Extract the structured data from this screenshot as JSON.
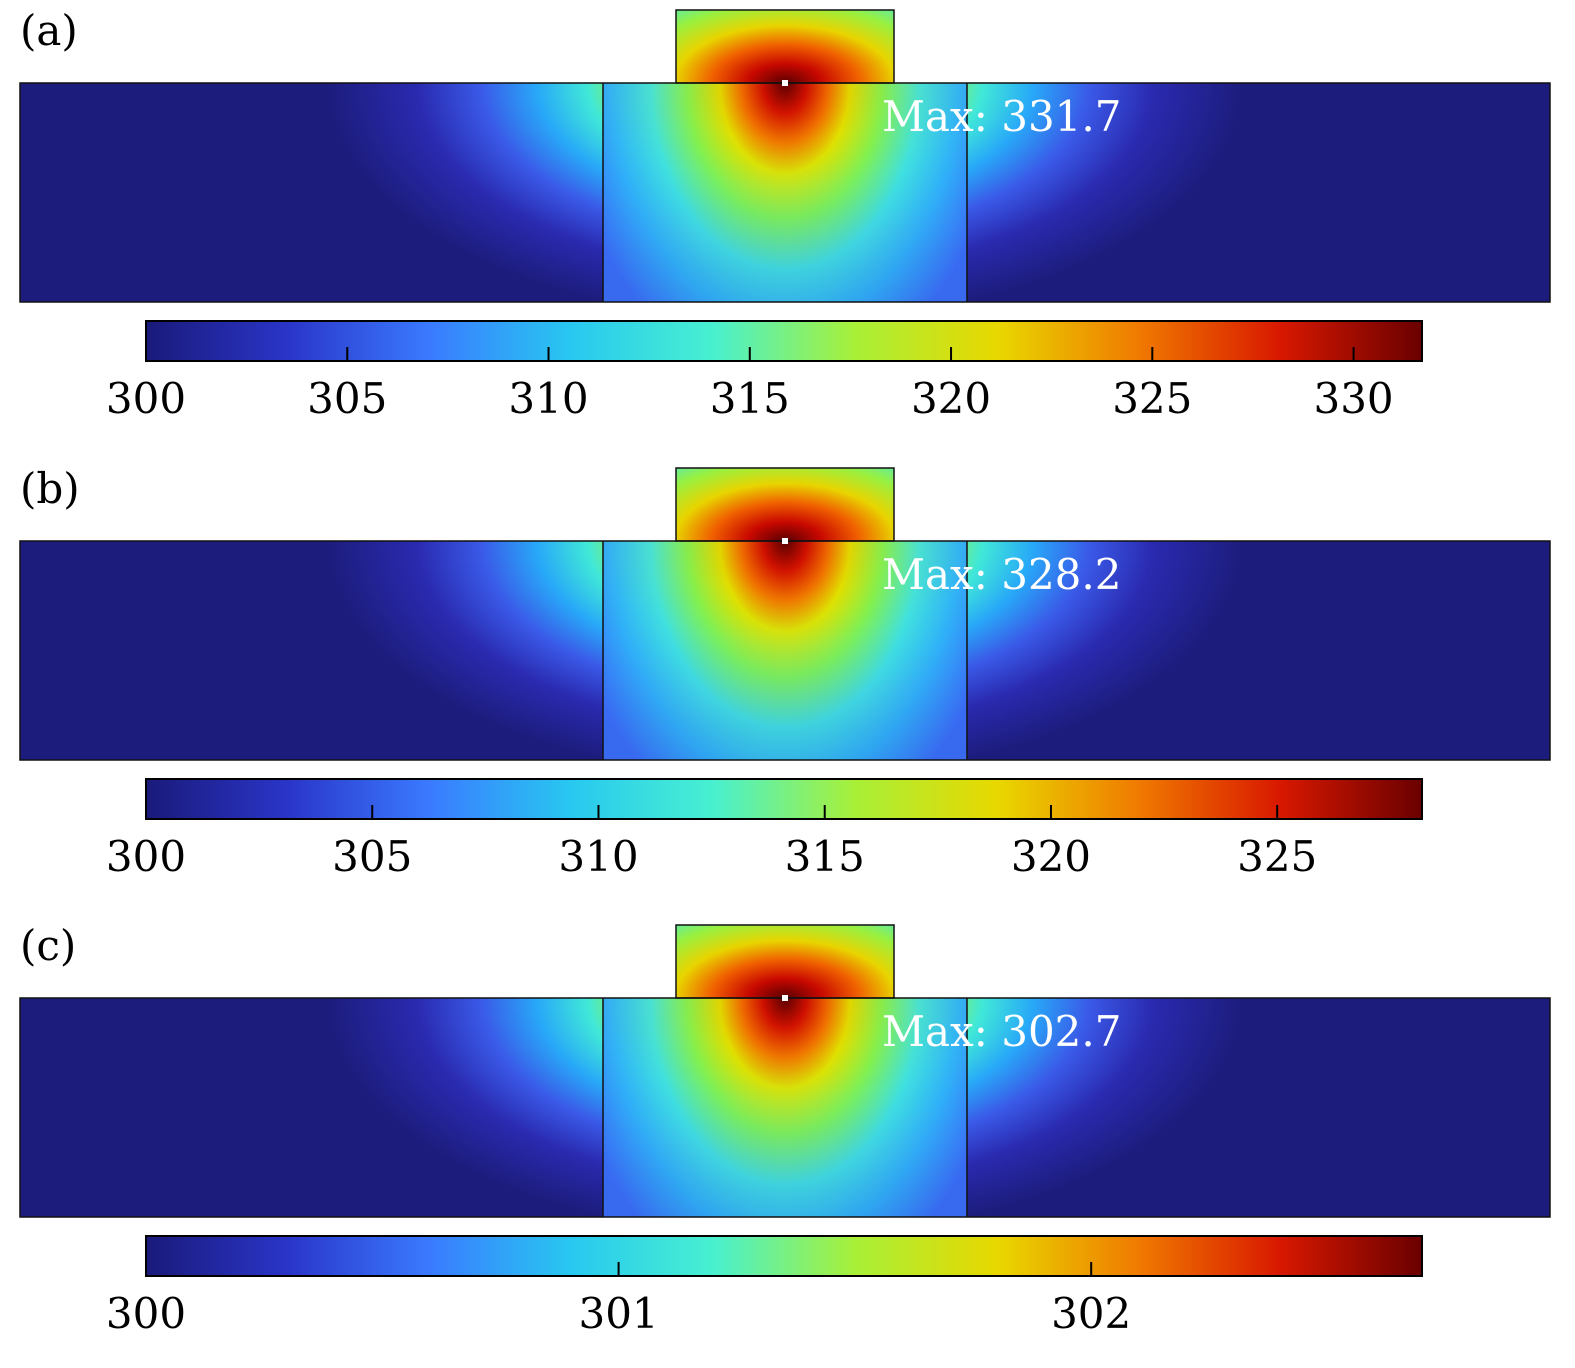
{
  "chart_data": [
    {
      "type": "heatmap",
      "panel_label": "(a)",
      "max_label": "Max: 331.7",
      "max_value": 331.7,
      "colorbar": {
        "min": 300,
        "max": 331.7,
        "ticks": [
          300,
          305,
          310,
          315,
          320,
          325,
          330
        ]
      }
    },
    {
      "type": "heatmap",
      "panel_label": "(b)",
      "max_label": "Max: 328.2",
      "max_value": 328.2,
      "colorbar": {
        "min": 300,
        "max": 328.2,
        "ticks": [
          300,
          305,
          310,
          315,
          320,
          325
        ]
      }
    },
    {
      "type": "heatmap",
      "panel_label": "(c)",
      "max_label": "Max: 302.7",
      "max_value": 302.7,
      "colorbar": {
        "min": 300,
        "max": 302.7,
        "ticks": [
          300,
          301,
          302
        ]
      }
    }
  ],
  "colormap": [
    "#1a1a7a",
    "#2a35c8",
    "#3a7aff",
    "#28c8f0",
    "#48f0d0",
    "#a8f038",
    "#e8d800",
    "#f07a00",
    "#d81800",
    "#6a0000"
  ]
}
